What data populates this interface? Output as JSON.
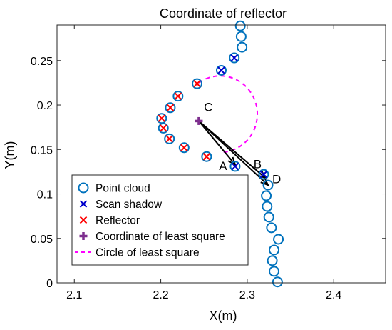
{
  "chart_data": {
    "type": "scatter",
    "title": "Coordinate of reflector",
    "xlabel": "X(m)",
    "ylabel": "Y(m)",
    "xlim": [
      2.08,
      2.46
    ],
    "ylim": [
      0,
      0.29
    ],
    "xticks": [
      2.1,
      2.2,
      2.3,
      2.4
    ],
    "xtick_labels": [
      "2.1",
      "2.2",
      "2.3",
      "2.4"
    ],
    "yticks": [
      0,
      0.05,
      0.1,
      0.15,
      0.2,
      0.25
    ],
    "ytick_labels": [
      "0",
      "0.05",
      "0.1",
      "0.15",
      "0.2",
      "0.25"
    ],
    "grid": false,
    "legend_position": "lower-left",
    "series": [
      {
        "name": "Point cloud",
        "marker": "circle",
        "color": "#0072BD",
        "points": [
          [
            2.292,
            0.289
          ],
          [
            2.293,
            0.277
          ],
          [
            2.294,
            0.265
          ],
          [
            2.285,
            0.253
          ],
          [
            2.27,
            0.239
          ],
          [
            2.242,
            0.224
          ],
          [
            2.22,
            0.21
          ],
          [
            2.211,
            0.197
          ],
          [
            2.201,
            0.185
          ],
          [
            2.203,
            0.174
          ],
          [
            2.21,
            0.162
          ],
          [
            2.227,
            0.152
          ],
          [
            2.253,
            0.142
          ],
          [
            2.286,
            0.131
          ],
          [
            2.319,
            0.122
          ],
          [
            2.324,
            0.11
          ],
          [
            2.322,
            0.098
          ],
          [
            2.323,
            0.086
          ],
          [
            2.325,
            0.074
          ],
          [
            2.328,
            0.062
          ],
          [
            2.336,
            0.049
          ],
          [
            2.331,
            0.037
          ],
          [
            2.329,
            0.025
          ],
          [
            2.331,
            0.013
          ],
          [
            2.335,
            0.001
          ]
        ]
      },
      {
        "name": "Scan shadow",
        "marker": "x",
        "color": "#0000CC",
        "points": [
          [
            2.285,
            0.253
          ],
          [
            2.27,
            0.239
          ],
          [
            2.286,
            0.131
          ],
          [
            2.319,
            0.122
          ]
        ]
      },
      {
        "name": "Reflector",
        "marker": "x",
        "color": "#FF0000",
        "points": [
          [
            2.242,
            0.224
          ],
          [
            2.22,
            0.21
          ],
          [
            2.211,
            0.197
          ],
          [
            2.201,
            0.185
          ],
          [
            2.203,
            0.174
          ],
          [
            2.21,
            0.162
          ],
          [
            2.227,
            0.152
          ],
          [
            2.253,
            0.142
          ]
        ]
      },
      {
        "name": "Coordinate of least square",
        "marker": "plus",
        "color": "#7E2F8E",
        "points": [
          [
            2.244,
            0.182
          ]
        ]
      },
      {
        "name": "Circle of least square",
        "marker": "dashed-line",
        "color": "#FF00FF",
        "circle": {
          "cx": 2.244,
          "cy": 0.182,
          "r": 0.043,
          "start_deg": 90,
          "end_deg": 305
        }
      }
    ],
    "arrows": [
      {
        "from": [
          2.244,
          0.182
        ],
        "to": [
          2.286,
          0.133
        ]
      },
      {
        "from": [
          2.244,
          0.182
        ],
        "to": [
          2.321,
          0.118
        ]
      },
      {
        "from": [
          2.244,
          0.182
        ],
        "to": [
          2.324,
          0.11
        ]
      }
    ],
    "annotations": [
      {
        "text": "C",
        "x": 2.255,
        "y": 0.193
      },
      {
        "text": "A",
        "x": 2.272,
        "y": 0.127
      },
      {
        "text": "B",
        "x": 2.312,
        "y": 0.129
      },
      {
        "text": "D",
        "x": 2.334,
        "y": 0.112
      }
    ]
  }
}
